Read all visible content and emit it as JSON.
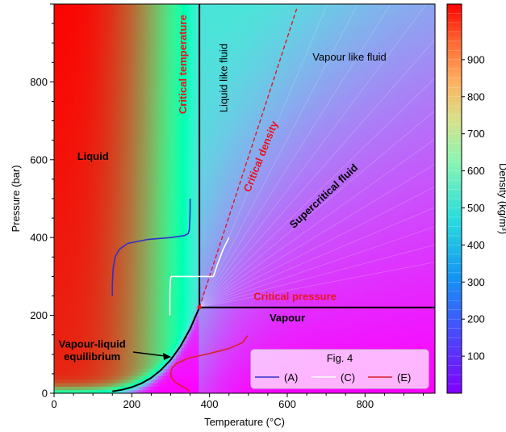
{
  "chart_data": {
    "type": "heatmap",
    "title": "",
    "xlabel": "Temperature (°C)",
    "ylabel": "Pressure (bar)",
    "xlim": [
      0,
      980
    ],
    "ylim": [
      0,
      1000
    ],
    "x_ticks": [
      0,
      200,
      400,
      600,
      800
    ],
    "y_ticks": [
      0,
      200,
      400,
      600,
      800
    ],
    "colorbar": {
      "label": "Density (kg/m³)",
      "colormap": "rainbow",
      "range": [
        0,
        1050
      ],
      "ticks": [
        100,
        200,
        300,
        400,
        500,
        600,
        700,
        800,
        900
      ]
    },
    "critical_point": {
      "temperature": 374,
      "pressure": 221
    },
    "annotations": [
      {
        "text": "Liquid",
        "x": 100,
        "y": 600,
        "style": "bold"
      },
      {
        "text": "Vapour",
        "x": 600,
        "y": 185,
        "style": "bold"
      },
      {
        "text": "Supercritical fluid",
        "x": 700,
        "y": 500,
        "style": "bold",
        "rotation": -43
      },
      {
        "text": "Vapour like fluid",
        "x": 760,
        "y": 855,
        "style": "normal"
      },
      {
        "text": "Liquid like fluid",
        "x": 445,
        "y": 810,
        "style": "normal",
        "rotation": -90
      },
      {
        "text": "Critical temperature",
        "x": 340,
        "y": 845,
        "style": "critical",
        "rotation": -90
      },
      {
        "text": "Critical density",
        "x": 540,
        "y": 605,
        "style": "critical",
        "rotation": -68
      },
      {
        "text": "Critical pressure",
        "x": 620,
        "y": 240,
        "style": "critical"
      },
      {
        "text": "Vapour-liquid",
        "x": 98,
        "y": 117,
        "style": "bold"
      },
      {
        "text": "equilibrium",
        "x": 98,
        "y": 85,
        "style": "bold"
      }
    ],
    "lines": [
      {
        "name": "saturation curve",
        "color": "#000000",
        "x": [
          150,
          175,
          200,
          225,
          250,
          275,
          300,
          325,
          350,
          374
        ],
        "y": [
          4.8,
          8.9,
          15.5,
          25.5,
          39.7,
          59.5,
          85.9,
          120.6,
          165.3,
          220.6
        ]
      },
      {
        "name": "critical temperature",
        "color": "#000000",
        "x": [
          374,
          374
        ],
        "y": [
          220.6,
          1000
        ]
      },
      {
        "name": "critical pressure",
        "color": "#000000",
        "x": [
          374,
          980
        ],
        "y": [
          220.6,
          220.6
        ]
      },
      {
        "name": "critical density",
        "color": "#e8141e",
        "dashed": true,
        "x": [
          374,
          625
        ],
        "y": [
          220.6,
          990
        ]
      }
    ],
    "legend": {
      "title": "Fig. 4",
      "placement": "lower-right",
      "entries": [
        {
          "label": "(A)",
          "color": "#3030c8"
        },
        {
          "label": "(C)",
          "color": "#ffffff"
        },
        {
          "label": "(E)",
          "color": "#d8202e"
        }
      ]
    },
    "series": [
      {
        "name": "(A)",
        "color": "#3030c8",
        "x": [
          150,
          150,
          152,
          157,
          168,
          190,
          240,
          300,
          335,
          345,
          348,
          349,
          350,
          350
        ],
        "y": [
          250,
          280,
          320,
          350,
          370,
          385,
          395,
          400,
          405,
          410,
          420,
          440,
          470,
          500
        ]
      },
      {
        "name": "(C)",
        "color": "#ffffff",
        "x": [
          298,
          298,
          300,
          302,
          370,
          410,
          412,
          420,
          435,
          450
        ],
        "y": [
          200,
          260,
          297,
          300,
          300,
          300,
          305,
          330,
          370,
          400
        ]
      },
      {
        "name": "(E)",
        "color": "#d8202e",
        "x": [
          348,
          340,
          325,
          310,
          302,
          300,
          303,
          315,
          345,
          400,
          450,
          485,
          498
        ],
        "y": [
          5,
          12,
          20,
          30,
          40,
          52,
          64,
          76,
          90,
          102,
          115,
          130,
          148
        ]
      }
    ]
  }
}
